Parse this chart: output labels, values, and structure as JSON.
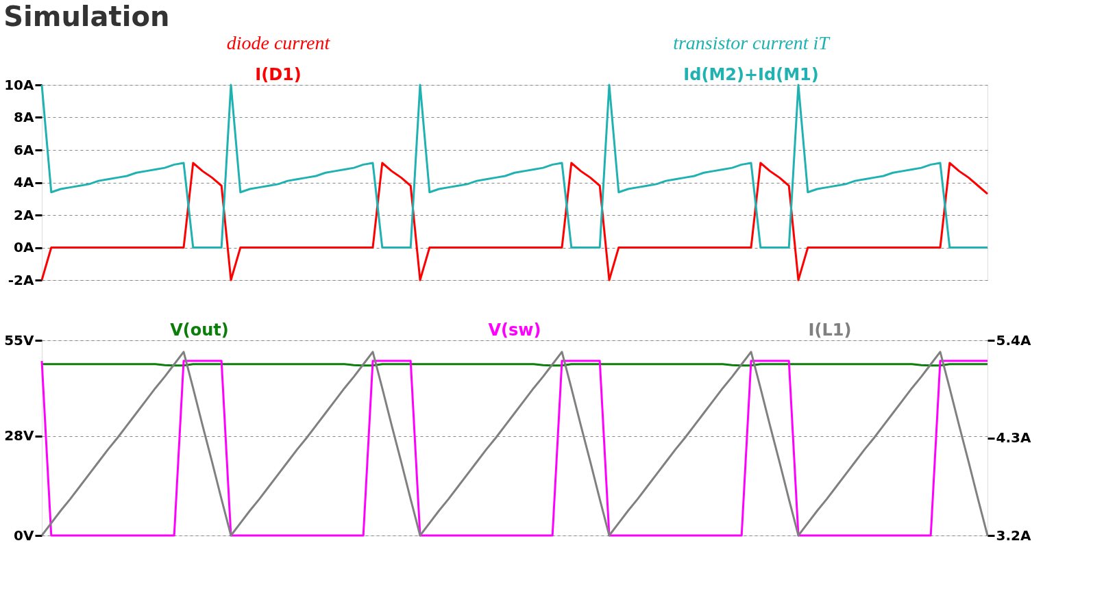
{
  "chart_data": [
    {
      "type": "line",
      "title": "Simulation",
      "annotations": [
        "diode current",
        "transistor current iT"
      ],
      "categories": [
        null,
        null,
        null,
        null,
        null,
        null,
        null,
        null,
        null,
        null,
        null,
        null,
        null,
        null,
        null,
        null,
        null,
        null,
        null,
        null,
        null,
        null,
        null,
        null,
        null,
        null,
        null,
        null,
        null,
        null,
        null,
        null,
        null,
        null,
        null,
        null,
        null,
        null,
        null,
        null,
        null,
        null,
        null,
        null,
        null,
        null,
        null,
        null,
        null,
        null,
        null,
        null,
        null,
        null,
        null,
        null,
        null,
        null,
        null,
        null,
        null,
        null,
        null,
        null,
        null,
        null,
        null,
        null,
        null,
        null,
        null,
        null,
        null,
        null,
        null,
        null,
        null,
        null,
        null,
        null,
        null,
        null,
        null,
        null,
        null,
        null,
        null,
        null,
        null,
        null,
        null,
        null,
        null,
        null,
        null,
        null,
        null,
        null,
        null,
        null,
        null
      ],
      "ylim": [
        -2,
        10
      ],
      "yticks": [
        {
          "value": -2,
          "label": "-2A"
        },
        {
          "value": 0,
          "label": "0A"
        },
        {
          "value": 2,
          "label": "2A"
        },
        {
          "value": 4,
          "label": "4A"
        },
        {
          "value": 6,
          "label": "6A"
        },
        {
          "value": 8,
          "label": "8A"
        },
        {
          "value": 10,
          "label": "10A"
        }
      ],
      "grid": "y",
      "tick_labels": "y",
      "series": [
        {
          "name": "I(D1)",
          "color": "#ff0000",
          "values": [
            -2,
            0,
            0,
            0,
            0,
            0,
            0,
            0,
            0,
            0,
            0,
            0,
            0,
            0,
            0,
            0,
            5.2,
            4.7,
            4.3,
            3.8,
            -2,
            0,
            0,
            0,
            0,
            0,
            0,
            0,
            0,
            0,
            0,
            0,
            0,
            0,
            0,
            0,
            5.2,
            4.7,
            4.3,
            3.8,
            -2,
            0,
            0,
            0,
            0,
            0,
            0,
            0,
            0,
            0,
            0,
            0,
            0,
            0,
            0,
            0,
            5.2,
            4.7,
            4.3,
            3.8,
            -2,
            0,
            0,
            0,
            0,
            0,
            0,
            0,
            0,
            0,
            0,
            0,
            0,
            0,
            0,
            0,
            5.2,
            4.7,
            4.3,
            3.8,
            -2,
            0,
            0,
            0,
            0,
            0,
            0,
            0,
            0,
            0,
            0,
            0,
            0,
            0,
            0,
            0,
            5.2,
            4.7,
            4.3,
            3.8,
            3.3
          ]
        },
        {
          "name": "Id(M2)+Id(M1)",
          "color": "#20b2b2",
          "values": [
            10,
            3.4,
            3.6,
            3.7,
            3.8,
            3.9,
            4.1,
            4.2,
            4.3,
            4.4,
            4.6,
            4.7,
            4.8,
            4.9,
            5.1,
            5.2,
            0,
            0,
            0,
            0,
            10,
            3.4,
            3.6,
            3.7,
            3.8,
            3.9,
            4.1,
            4.2,
            4.3,
            4.4,
            4.6,
            4.7,
            4.8,
            4.9,
            5.1,
            5.2,
            0,
            0,
            0,
            0,
            10,
            3.4,
            3.6,
            3.7,
            3.8,
            3.9,
            4.1,
            4.2,
            4.3,
            4.4,
            4.6,
            4.7,
            4.8,
            4.9,
            5.1,
            5.2,
            0,
            0,
            0,
            0,
            10,
            3.4,
            3.6,
            3.7,
            3.8,
            3.9,
            4.1,
            4.2,
            4.3,
            4.4,
            4.6,
            4.7,
            4.8,
            4.9,
            5.1,
            5.2,
            0,
            0,
            0,
            0,
            10,
            3.4,
            3.6,
            3.7,
            3.8,
            3.9,
            4.1,
            4.2,
            4.3,
            4.4,
            4.6,
            4.7,
            4.8,
            4.9,
            5.1,
            5.2,
            0,
            0,
            0,
            0,
            0
          ]
        }
      ]
    },
    {
      "type": "line",
      "categories": [
        null,
        null,
        null,
        null,
        null,
        null,
        null,
        null,
        null,
        null,
        null,
        null,
        null,
        null,
        null,
        null,
        null,
        null,
        null,
        null,
        null,
        null,
        null,
        null,
        null,
        null,
        null,
        null,
        null,
        null,
        null,
        null,
        null,
        null,
        null,
        null,
        null,
        null,
        null,
        null,
        null,
        null,
        null,
        null,
        null,
        null,
        null,
        null,
        null,
        null,
        null,
        null,
        null,
        null,
        null,
        null,
        null,
        null,
        null,
        null,
        null,
        null,
        null,
        null,
        null,
        null,
        null,
        null,
        null,
        null,
        null,
        null,
        null,
        null,
        null,
        null,
        null,
        null,
        null,
        null,
        null,
        null,
        null,
        null,
        null,
        null,
        null,
        null,
        null,
        null,
        null,
        null,
        null,
        null,
        null,
        null,
        null,
        null,
        null,
        null,
        null
      ],
      "ylim": [
        0,
        55
      ],
      "yticks": [
        {
          "value": 0,
          "label": "0V"
        },
        {
          "value": 28,
          "label": "28V"
        },
        {
          "value": 55,
          "label": "55V"
        }
      ],
      "y2lim": [
        3.2,
        5.4
      ],
      "y2ticks": [
        {
          "value": 3.2,
          "label": "3.2A"
        },
        {
          "value": 4.3,
          "label": "4.3A"
        },
        {
          "value": 5.4,
          "label": "5.4A"
        }
      ],
      "grid": "y",
      "tick_labels": "y",
      "series": [
        {
          "name": "V(out)",
          "color": "#0a7d0a",
          "values": [
            48.3,
            48.3,
            48.3,
            48.3,
            48.3,
            48.3,
            48.3,
            48.3,
            48.3,
            48.3,
            48.3,
            48.3,
            48.3,
            48.0,
            47.9,
            47.9,
            48.3,
            48.3,
            48.3,
            48.3,
            48.3,
            48.3,
            48.3,
            48.3,
            48.3,
            48.3,
            48.3,
            48.3,
            48.3,
            48.3,
            48.3,
            48.3,
            48.3,
            48.0,
            47.9,
            47.9,
            48.3,
            48.3,
            48.3,
            48.3,
            48.3,
            48.3,
            48.3,
            48.3,
            48.3,
            48.3,
            48.3,
            48.3,
            48.3,
            48.3,
            48.3,
            48.3,
            48.3,
            48.0,
            47.9,
            47.9,
            48.3,
            48.3,
            48.3,
            48.3,
            48.3,
            48.3,
            48.3,
            48.3,
            48.3,
            48.3,
            48.3,
            48.3,
            48.3,
            48.3,
            48.3,
            48.3,
            48.3,
            48.0,
            47.9,
            47.9,
            48.3,
            48.3,
            48.3,
            48.3,
            48.3,
            48.3,
            48.3,
            48.3,
            48.3,
            48.3,
            48.3,
            48.3,
            48.3,
            48.3,
            48.3,
            48.3,
            48.3,
            48.0,
            47.9,
            47.9,
            48.3,
            48.3,
            48.3,
            48.3,
            48.3
          ]
        },
        {
          "name": "V(sw)",
          "color": "#ff00ff",
          "values": [
            49.2,
            0,
            0,
            0,
            0,
            0,
            0,
            0,
            0,
            0,
            0,
            0,
            0,
            0,
            0,
            49.2,
            49.2,
            49.2,
            49.2,
            49.2,
            0,
            0,
            0,
            0,
            0,
            0,
            0,
            0,
            0,
            0,
            0,
            0,
            0,
            0,
            0,
            49.2,
            49.2,
            49.2,
            49.2,
            49.2,
            0,
            0,
            0,
            0,
            0,
            0,
            0,
            0,
            0,
            0,
            0,
            0,
            0,
            0,
            0,
            49.2,
            49.2,
            49.2,
            49.2,
            49.2,
            0,
            0,
            0,
            0,
            0,
            0,
            0,
            0,
            0,
            0,
            0,
            0,
            0,
            0,
            0,
            49.2,
            49.2,
            49.2,
            49.2,
            49.2,
            0,
            0,
            0,
            0,
            0,
            0,
            0,
            0,
            0,
            0,
            0,
            0,
            0,
            0,
            0,
            49.2,
            49.2,
            49.2,
            49.2,
            49.2,
            49.2
          ]
        },
        {
          "name": "I(L1)",
          "color": "#808080",
          "axis": "y2",
          "values": [
            3.2,
            3.34,
            3.48,
            3.61,
            3.75,
            3.89,
            4.03,
            4.17,
            4.3,
            4.44,
            4.58,
            4.72,
            4.86,
            4.99,
            5.13,
            5.27,
            4.86,
            4.44,
            4.03,
            3.61,
            3.2,
            3.34,
            3.48,
            3.61,
            3.75,
            3.89,
            4.03,
            4.17,
            4.3,
            4.44,
            4.58,
            4.72,
            4.86,
            4.99,
            5.13,
            5.27,
            4.86,
            4.44,
            4.03,
            3.61,
            3.2,
            3.34,
            3.48,
            3.61,
            3.75,
            3.89,
            4.03,
            4.17,
            4.3,
            4.44,
            4.58,
            4.72,
            4.86,
            4.99,
            5.13,
            5.27,
            4.86,
            4.44,
            4.03,
            3.61,
            3.2,
            3.34,
            3.48,
            3.61,
            3.75,
            3.89,
            4.03,
            4.17,
            4.3,
            4.44,
            4.58,
            4.72,
            4.86,
            4.99,
            5.13,
            5.27,
            4.86,
            4.44,
            4.03,
            3.61,
            3.2,
            3.34,
            3.48,
            3.61,
            3.75,
            3.89,
            4.03,
            4.17,
            4.3,
            4.44,
            4.58,
            4.72,
            4.86,
            4.99,
            5.13,
            5.27,
            4.86,
            4.44,
            4.03,
            3.61,
            3.2
          ]
        }
      ]
    }
  ]
}
